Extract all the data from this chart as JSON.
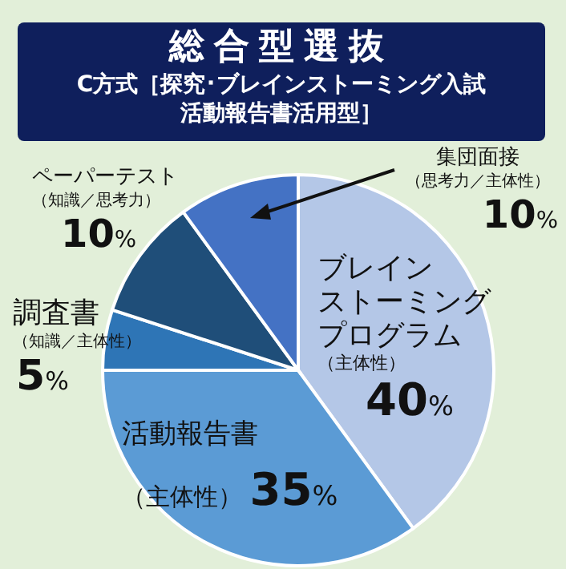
{
  "chart_data": {
    "type": "pie",
    "title": "総合型選抜",
    "subtitle": "C方式［探究･ブレインストーミング入試活動報告書活用型］",
    "categories": [
      "ブレインストーミングプログラム（主体性）",
      "活動報告書（主体性）",
      "調査書（知識／主体性）",
      "ペーパーテスト（知識／思考力）",
      "集団面接（思考力／主体性）"
    ],
    "values": [
      40,
      35,
      5,
      10,
      10
    ],
    "value_labels": [
      "40%",
      "35%",
      "5%",
      "10%",
      "10%"
    ],
    "colors": [
      "#b4c7e7",
      "#5b9bd5",
      "#2e75b6",
      "#1f4e79",
      "#4472c4"
    ]
  }
}
